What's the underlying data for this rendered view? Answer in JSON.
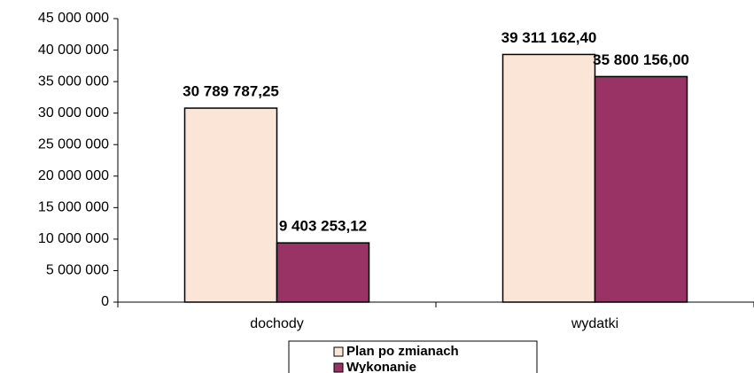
{
  "chart_data": {
    "type": "bar",
    "categories": [
      "dochody",
      "wydatki"
    ],
    "series": [
      {
        "name": "Plan po zmianach",
        "color": "#fae5d6",
        "values": [
          30789787.25,
          39311162.4
        ],
        "value_labels": [
          "30 789 787,25",
          "39 311 162,40"
        ]
      },
      {
        "name": "Wykonanie",
        "color": "#993366",
        "values": [
          9403253.12,
          35800156.0
        ],
        "value_labels": [
          "9 403 253,12",
          "35 800 156,00"
        ]
      }
    ],
    "ylim": [
      0,
      45000000
    ],
    "yticks": [
      0,
      {
        "value": 5000000,
        "label": "5 000 000"
      },
      {
        "value": 10000000,
        "label": "10 000 000"
      },
      {
        "value": 15000000,
        "label": "15 000 000"
      },
      {
        "value": 20000000,
        "label": "20 000 000"
      },
      {
        "value": 25000000,
        "label": "25 000 000"
      },
      {
        "value": 30000000,
        "label": "30 000 000"
      },
      {
        "value": 35000000,
        "label": "35 000 000"
      },
      {
        "value": 40000000,
        "label": "40 000 000"
      },
      {
        "value": 45000000,
        "label": "45 000 000"
      }
    ],
    "legend": "bottom",
    "grid": false
  }
}
